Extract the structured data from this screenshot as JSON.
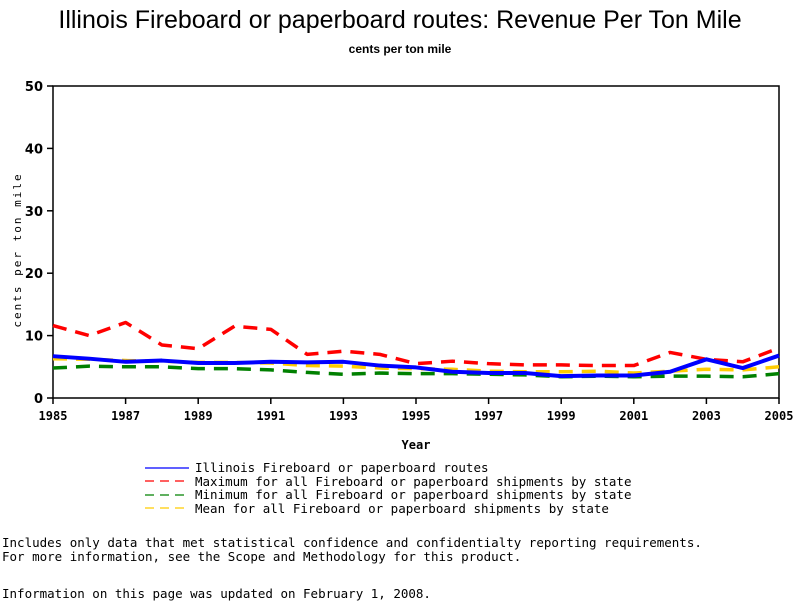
{
  "chart_data": {
    "type": "line",
    "title": "Illinois Fireboard or paperboard routes: Revenue Per Ton Mile",
    "subtitle": "cents per ton mile",
    "xlabel": "Year",
    "ylabel": "cents per ton mile",
    "xlim": [
      1985,
      2005
    ],
    "ylim": [
      0,
      50
    ],
    "x_ticks": [
      "1985",
      "1987",
      "1989",
      "1991",
      "1993",
      "1995",
      "1997",
      "1999",
      "2001",
      "2003",
      "2005"
    ],
    "y_ticks": [
      "0",
      "10",
      "20",
      "30",
      "40",
      "50"
    ],
    "x": [
      1985,
      1986,
      1987,
      1988,
      1989,
      1990,
      1991,
      1992,
      1993,
      1994,
      1995,
      1996,
      1997,
      1998,
      1999,
      2000,
      2001,
      2002,
      2003,
      2004,
      2005
    ],
    "series": [
      {
        "name": "Illinois Fireboard or paperboard routes",
        "color": "#0000ff",
        "dash": "solid",
        "values": [
          6.7,
          6.3,
          5.8,
          6.0,
          5.6,
          5.6,
          5.8,
          5.7,
          5.8,
          5.2,
          4.9,
          4.2,
          4.0,
          4.0,
          3.5,
          3.6,
          3.6,
          4.2,
          6.2,
          4.8,
          6.8
        ]
      },
      {
        "name": "Maximum for all Fireboard or paperboard shipments by state",
        "color": "#ff0000",
        "dash": "dashed",
        "values": [
          11.6,
          10.0,
          12.1,
          8.5,
          7.9,
          11.5,
          11.0,
          7.0,
          7.5,
          7.0,
          5.5,
          5.9,
          5.5,
          5.3,
          5.3,
          5.2,
          5.2,
          7.3,
          6.2,
          5.8,
          8.0
        ]
      },
      {
        "name": "Minimum for all Fireboard or paperboard shipments by state",
        "color": "#008000",
        "dash": "dashed",
        "values": [
          4.8,
          5.1,
          5.0,
          5.0,
          4.7,
          4.7,
          4.5,
          4.1,
          3.8,
          4.0,
          3.9,
          3.9,
          3.8,
          3.7,
          3.4,
          3.5,
          3.4,
          3.5,
          3.5,
          3.4,
          3.9
        ]
      },
      {
        "name": "Mean for all Fireboard or paperboard shipments by state",
        "color": "#ffcc00",
        "dash": "dashed",
        "values": [
          6.3,
          6.2,
          6.0,
          5.9,
          5.7,
          5.7,
          5.6,
          5.2,
          5.1,
          4.8,
          4.7,
          4.6,
          4.3,
          4.2,
          4.2,
          4.3,
          4.0,
          4.3,
          4.6,
          4.5,
          5.0
        ]
      }
    ],
    "legend_position": "bottom",
    "grid": false
  },
  "notes": [
    "Includes only data that met statistical confidence and confidentialty reporting requirements.",
    "For more information, see the Scope and Methodology for this product."
  ],
  "updated": "Information on this page was updated on February 1, 2008."
}
